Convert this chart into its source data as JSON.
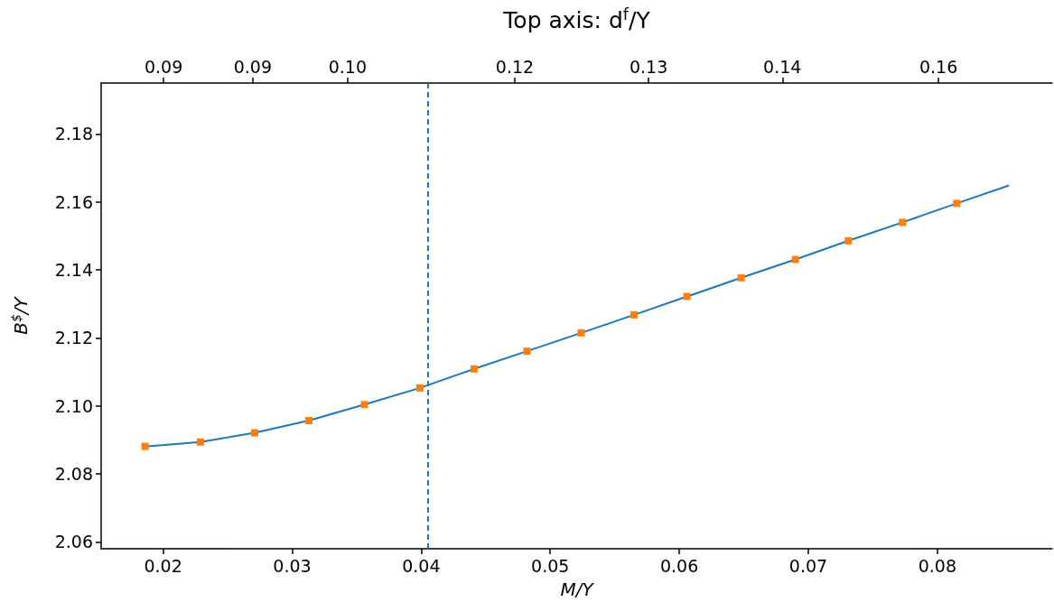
{
  "chart_data": {
    "type": "line",
    "xlabel": "M/Y",
    "ylabel": "B$^{$}$/Y",
    "x2label": "Top axis: d$^{f}$/Y",
    "series": [
      {
        "color": "#1f77b4",
        "marker": "none",
        "x": [
          0.0186,
          0.0229,
          0.0271,
          0.0313,
          0.0356,
          0.0399,
          0.0441,
          0.0482,
          0.0524,
          0.0565,
          0.0606,
          0.0648,
          0.069,
          0.0731,
          0.0773,
          0.0815,
          0.0855
        ],
        "values": [
          2.0881,
          2.0894,
          2.0921,
          2.0957,
          2.1004,
          2.1053,
          2.1109,
          2.1161,
          2.1215,
          2.1268,
          2.1322,
          2.1377,
          2.1431,
          2.1486,
          2.154,
          2.1596,
          2.1648
        ]
      },
      {
        "type": "scatter",
        "color": "#ff7f0e",
        "marker": "square",
        "x": [
          0.0186,
          0.0229,
          0.0271,
          0.0313,
          0.0356,
          0.0399,
          0.0441,
          0.0482,
          0.0524,
          0.0565,
          0.0606,
          0.0648,
          0.069,
          0.0731,
          0.0773,
          0.0815
        ],
        "values": [
          2.0881,
          2.0894,
          2.0921,
          2.0957,
          2.1004,
          2.1053,
          2.1109,
          2.1161,
          2.1215,
          2.1268,
          2.1322,
          2.1377,
          2.1431,
          2.1486,
          2.154,
          2.1596
        ]
      }
    ],
    "xlim": [
      0.0152,
      0.0889
    ],
    "xticks": [
      0.02,
      0.03,
      0.04,
      0.05,
      0.06,
      0.07,
      0.08
    ],
    "ylim": [
      2.058,
      2.195
    ],
    "yticks": [
      2.06,
      2.08,
      {
        "value": 2.1,
        "label": "2.10"
      },
      2.12,
      2.14,
      2.16,
      2.18
    ],
    "x2lim": [
      0.0809,
      0.1662
    ],
    "x2ticks": [
      {
        "value": 0.0865,
        "label": "0.09"
      },
      {
        "value": 0.0945,
        "label": "0.09"
      },
      {
        "value": 0.103,
        "label": "0.10"
      },
      {
        "value": 0.118,
        "label": "0.12"
      },
      {
        "value": 0.13,
        "label": "0.13"
      },
      {
        "value": 0.142,
        "label": "0.14"
      },
      {
        "value": 0.156,
        "label": "0.16"
      }
    ],
    "ref_lines": [
      {
        "axis": "x",
        "value": 0.0405,
        "color": "#1f77b4",
        "line_style": "dashed"
      }
    ],
    "grid": false
  }
}
